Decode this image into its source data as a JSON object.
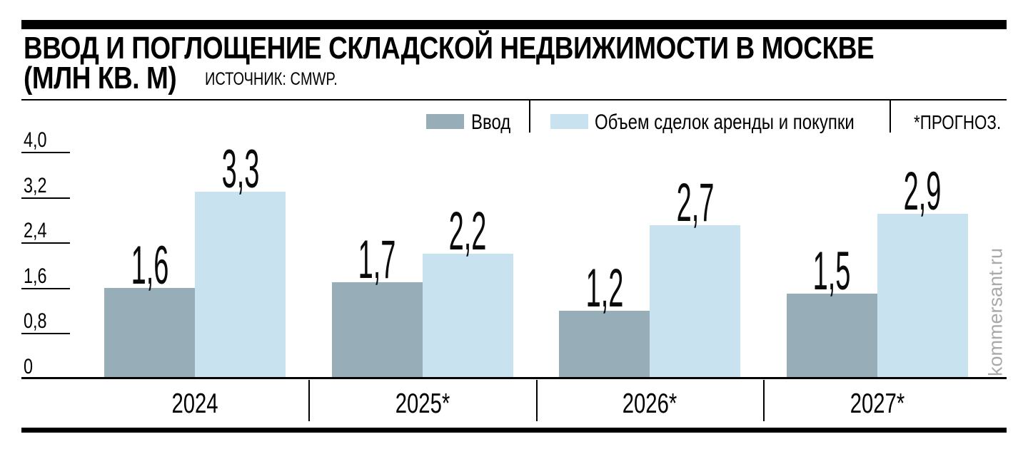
{
  "header": {
    "title_line1": "ВВОД И ПОГЛОЩЕНИЕ СКЛАДСКОЙ НЕДВИЖИМОСТИ В МОСКВЕ",
    "title_line2": "(МЛН КВ. М)",
    "source": "ИСТОЧНИК: CMWP."
  },
  "legend": {
    "items": [
      {
        "label": "Ввод",
        "color": "#97aeb9"
      },
      {
        "label": "Объем сделок аренды и покупки",
        "color": "#c8e2ef"
      }
    ],
    "note": "*ПРОГНОЗ."
  },
  "watermark": "kommersant.ru",
  "chart_data": {
    "type": "bar",
    "title": "Ввод и поглощение складской недвижимости в Москве (млн кв. м)",
    "categories": [
      "2024",
      "2025*",
      "2026*",
      "2027*"
    ],
    "series": [
      {
        "name": "Ввод",
        "color": "#97aeb9",
        "values": [
          1.6,
          1.7,
          1.2,
          1.5
        ]
      },
      {
        "name": "Объем сделок аренды и покупки",
        "color": "#c8e2ef",
        "values": [
          3.3,
          2.2,
          2.7,
          2.9
        ]
      }
    ],
    "yticks": [
      {
        "label": "4,0",
        "value": 4.0
      },
      {
        "label": "3,2",
        "value": 3.2
      },
      {
        "label": "2,4",
        "value": 2.4
      },
      {
        "label": "1,6",
        "value": 1.6
      },
      {
        "label": "0,8",
        "value": 0.8
      },
      {
        "label": "0",
        "value": 0
      }
    ],
    "ylim": [
      0,
      4.0
    ],
    "grid": false,
    "legend_position": "top",
    "decimal_separator": ","
  }
}
